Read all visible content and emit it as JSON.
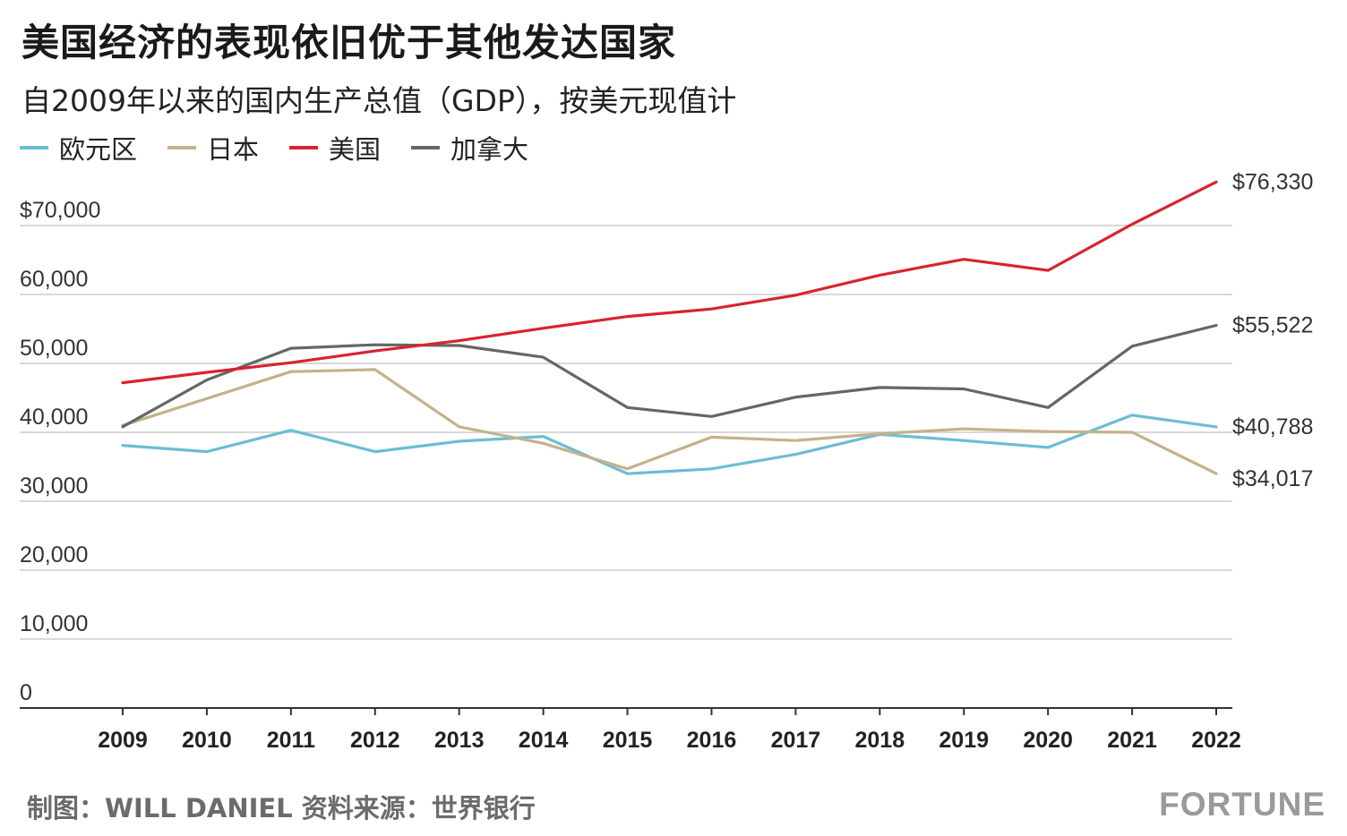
{
  "title": "美国经济的表现依旧优于其他发达国家",
  "subtitle": "自2009年以来的国内生产总值（GDP），按美元现值计",
  "footer": {
    "credit": "制图：WILL DANIEL 资料来源：世界银行",
    "brand": "FORTUNE"
  },
  "colors": {
    "eurozone": "#6bbdd3",
    "japan": "#c4b28c",
    "usa": "#d9232f",
    "canada": "#666666",
    "grid": "#d9d9d9",
    "axis": "#333333",
    "tick_text": "#222222",
    "value_text": "#333333"
  },
  "chart_data": {
    "type": "line",
    "title": "美国经济的表现依旧优于其他发达国家",
    "subtitle": "自2009年以来的国内生产总值（GDP），按美元现值计",
    "xlabel": "",
    "ylabel": "",
    "x": [
      "2009",
      "2010",
      "2011",
      "2012",
      "2013",
      "2014",
      "2015",
      "2016",
      "2017",
      "2018",
      "2019",
      "2020",
      "2021",
      "2022"
    ],
    "ylim": [
      0,
      70000
    ],
    "yticks": [
      {
        "value": 70000,
        "label": "$70,000"
      },
      {
        "value": 60000,
        "label": "60,000"
      },
      {
        "value": 50000,
        "label": "50,000"
      },
      {
        "value": 40000,
        "label": "40,000"
      },
      {
        "value": 30000,
        "label": "30,000"
      },
      {
        "value": 20000,
        "label": "20,000"
      },
      {
        "value": 10000,
        "label": "10,000"
      },
      {
        "value": 0,
        "label": "0"
      }
    ],
    "grid": true,
    "legend_position": "top-left",
    "series": [
      {
        "key": "eurozone",
        "name": "欧元区",
        "color": "#6bbdd3",
        "values": [
          38100,
          37200,
          40300,
          37200,
          38700,
          39400,
          34000,
          34700,
          36800,
          39700,
          38800,
          37800,
          42500,
          40788
        ],
        "end_label": "$40,788"
      },
      {
        "key": "japan",
        "name": "日本",
        "color": "#c4b28c",
        "values": [
          41000,
          44900,
          48800,
          49100,
          40800,
          38400,
          34700,
          39300,
          38800,
          39800,
          40500,
          40100,
          40000,
          34017
        ],
        "end_label": "$34,017"
      },
      {
        "key": "usa",
        "name": "美国",
        "color": "#d9232f",
        "values": [
          47200,
          48700,
          50100,
          51800,
          53300,
          55100,
          56800,
          57900,
          59900,
          62800,
          65100,
          63500,
          70200,
          76330
        ],
        "end_label": "$76,330"
      },
      {
        "key": "canada",
        "name": "加拿大",
        "color": "#666666",
        "values": [
          40800,
          47600,
          52200,
          52700,
          52600,
          50900,
          43600,
          42300,
          45100,
          46500,
          46300,
          43600,
          52500,
          55522
        ],
        "end_label": "$55,522"
      }
    ]
  }
}
